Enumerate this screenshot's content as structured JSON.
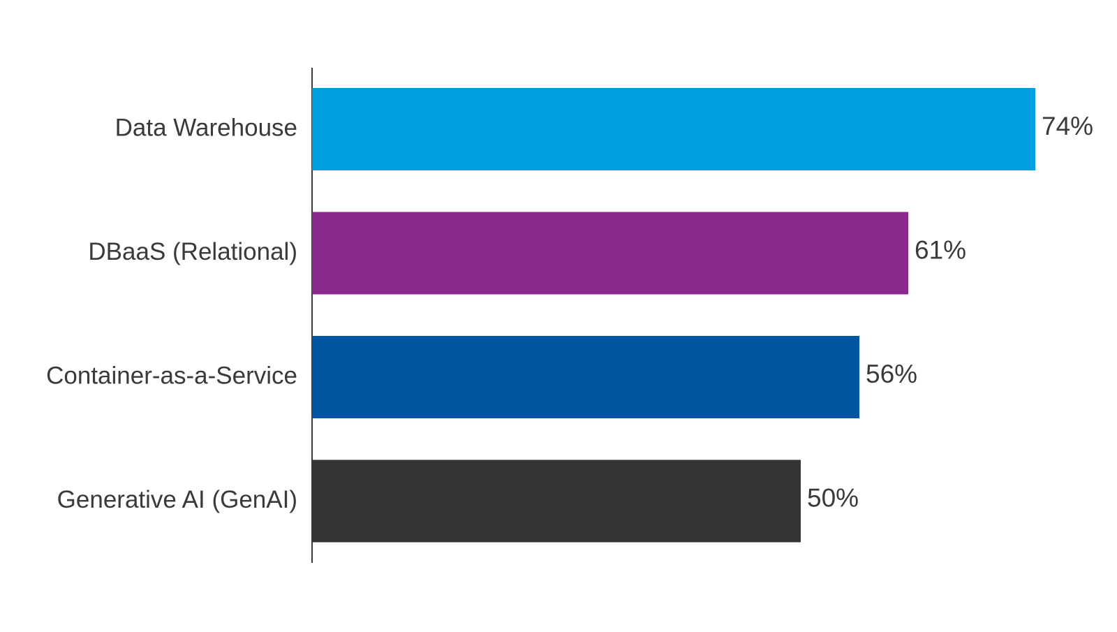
{
  "chart_data": {
    "type": "bar",
    "orientation": "horizontal",
    "categories": [
      "Data Warehouse",
      "DBaaS (Relational)",
      "Container-as-a-Service",
      "Generative AI (GenAI)"
    ],
    "values": [
      74,
      61,
      56,
      50
    ],
    "value_labels": [
      "74%",
      "61%",
      "56%",
      "50%"
    ],
    "colors": [
      "#00a1e0",
      "#8b288c",
      "#0055a2",
      "#343434"
    ],
    "xlim": [
      0,
      74
    ],
    "grid": false,
    "legend": "none"
  }
}
